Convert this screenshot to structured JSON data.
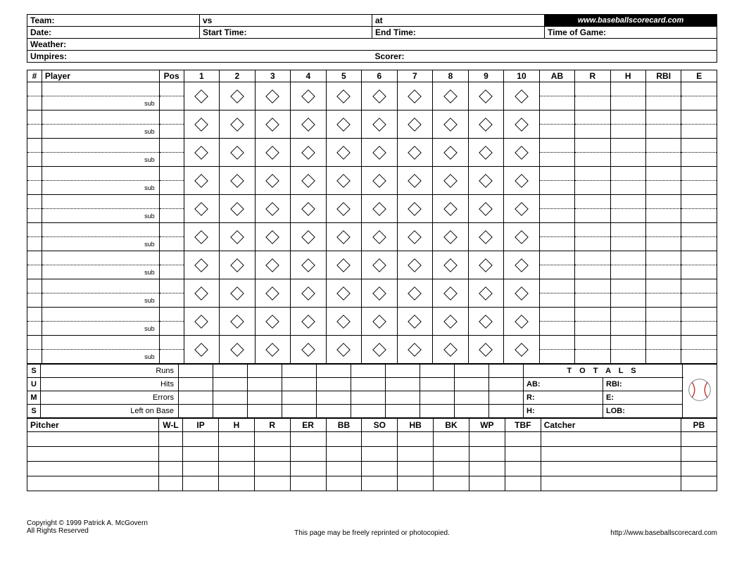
{
  "header": {
    "team_label": "Team:",
    "vs_label": "vs",
    "at_label": "at",
    "url": "www.baseballscorecard.com",
    "date_label": "Date:",
    "start_label": "Start Time:",
    "end_label": "End Time:",
    "tog_label": "Time of Game:",
    "weather_label": "Weather:",
    "umpires_label": "Umpires:",
    "scorer_label": "Scorer:"
  },
  "grid": {
    "num_header": "#",
    "player_header": "Player",
    "pos_header": "Pos",
    "innings": [
      "1",
      "2",
      "3",
      "4",
      "5",
      "6",
      "7",
      "8",
      "9",
      "10"
    ],
    "stats": [
      "AB",
      "R",
      "H",
      "RBI",
      "E"
    ],
    "sub_label": "sub",
    "player_rows": 10,
    "diamond": {
      "size": 22,
      "stroke": "#000",
      "fill": "none",
      "stroke_width": 1
    }
  },
  "sums": {
    "vert": [
      "S",
      "U",
      "M",
      "S"
    ],
    "rows": [
      "Runs",
      "Hits",
      "Errors",
      "Left on Base"
    ],
    "totals_label": "T O T A L S",
    "totals_left": [
      "AB:",
      "R:",
      "H:"
    ],
    "totals_right": [
      "RBI:",
      "E:",
      "LOB:"
    ],
    "baseball": {
      "body": "#ffffff",
      "seam": "#c62828",
      "outline": "#777"
    }
  },
  "pitch": {
    "pitcher_header": "Pitcher",
    "cols": [
      "W-L",
      "IP",
      "H",
      "R",
      "ER",
      "BB",
      "SO",
      "HB",
      "BK",
      "WP",
      "TBF"
    ],
    "catcher_header": "Catcher",
    "pb_header": "PB",
    "rows": 4
  },
  "footer": {
    "copyright": "Copyright © 1999 Patrick A. McGovern",
    "rights": "All Rights Reserved",
    "reprint": "This page may be freely reprinted or photocopied.",
    "link": "http://www.baseballscorecard.com"
  },
  "colors": {
    "bg": "#ffffff",
    "fg": "#000000"
  }
}
